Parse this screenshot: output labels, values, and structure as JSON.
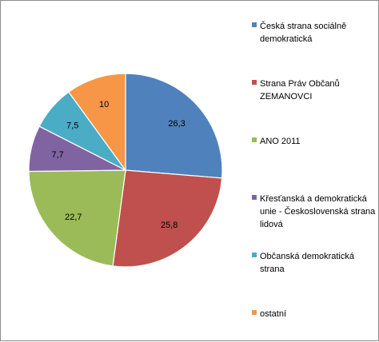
{
  "chart_data": {
    "type": "pie",
    "title": "",
    "categories": [
      "Česká strana sociálně demokratická",
      "Strana Práv Občanů ZEMANOVCI",
      "ANO 2011",
      "Křesťanská a demokratická unie - Československá strana lidová",
      "Občanská demokratická strana",
      "ostatní"
    ],
    "values": [
      26.3,
      25.8,
      22.7,
      7.7,
      7.5,
      10
    ],
    "value_labels": [
      "26,3",
      "25,8",
      "22,7",
      "7,7",
      "7,5",
      "10"
    ],
    "colors": [
      "#4f81bd",
      "#c0504d",
      "#9bbb59",
      "#8064a2",
      "#4bacc6",
      "#f79646"
    ],
    "legend_position": "right",
    "start_angle": "12 o'clock, clockwise"
  }
}
